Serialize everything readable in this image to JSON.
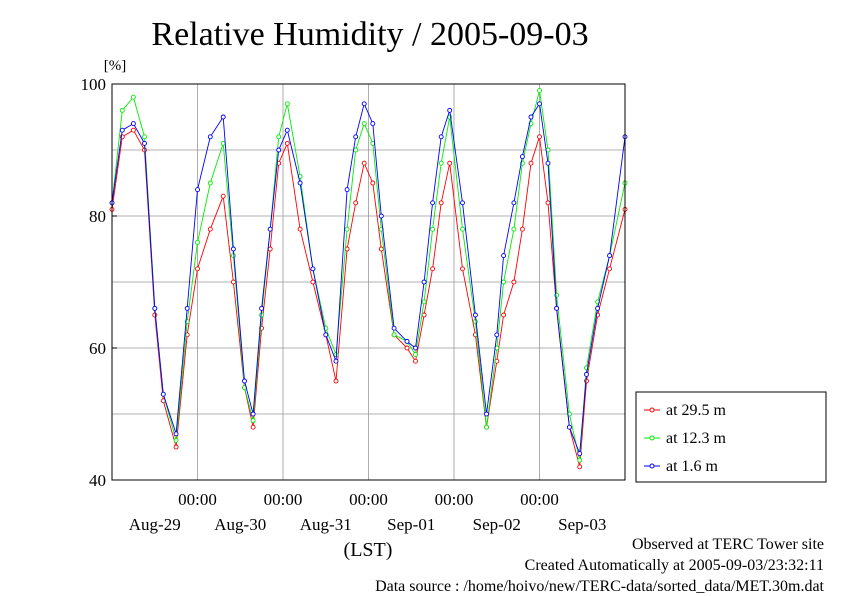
{
  "chart_data": {
    "type": "line",
    "title": "Relative Humidity / 2005-09-03",
    "ylabel": "[%]",
    "xlabel": "(LST)",
    "ylim": [
      40,
      100
    ],
    "yticks": [
      40,
      60,
      80,
      100
    ],
    "x_time_labels": [
      "00:00",
      "00:00",
      "00:00",
      "00:00",
      "00:00"
    ],
    "x_date_labels": [
      "Aug-29",
      "Aug-30",
      "Aug-31",
      "Sep-01",
      "Sep-02",
      "Sep-03"
    ],
    "x_range_days": [
      0,
      6
    ],
    "grid": true,
    "legend_position": "right",
    "series": [
      {
        "name": "at 29.5 m",
        "color": "#ff0000",
        "x": [
          0.0,
          0.12,
          0.25,
          0.38,
          0.5,
          0.6,
          0.75,
          0.88,
          1.0,
          1.15,
          1.3,
          1.42,
          1.55,
          1.65,
          1.75,
          1.85,
          1.95,
          2.05,
          2.2,
          2.35,
          2.5,
          2.62,
          2.75,
          2.85,
          2.95,
          3.05,
          3.15,
          3.3,
          3.45,
          3.55,
          3.65,
          3.75,
          3.85,
          3.95,
          4.1,
          4.25,
          4.38,
          4.5,
          4.58,
          4.7,
          4.8,
          4.9,
          5.0,
          5.1,
          5.2,
          5.35,
          5.47,
          5.55,
          5.68,
          5.82,
          6.0
        ],
        "y": [
          81,
          92,
          93,
          90,
          65,
          52,
          45,
          62,
          72,
          78,
          83,
          70,
          54,
          48,
          63,
          75,
          88,
          91,
          78,
          70,
          62,
          55,
          75,
          82,
          88,
          85,
          75,
          62,
          60,
          58,
          65,
          72,
          82,
          88,
          72,
          62,
          48,
          58,
          65,
          70,
          78,
          88,
          92,
          82,
          66,
          48,
          42,
          55,
          65,
          72,
          81
        ]
      },
      {
        "name": "at 12.3 m",
        "color": "#00ee00",
        "x": [
          0.0,
          0.12,
          0.25,
          0.38,
          0.5,
          0.6,
          0.75,
          0.88,
          1.0,
          1.15,
          1.3,
          1.42,
          1.55,
          1.65,
          1.75,
          1.85,
          1.95,
          2.05,
          2.2,
          2.35,
          2.5,
          2.62,
          2.75,
          2.85,
          2.95,
          3.05,
          3.15,
          3.3,
          3.45,
          3.55,
          3.65,
          3.75,
          3.85,
          3.95,
          4.1,
          4.25,
          4.38,
          4.5,
          4.58,
          4.7,
          4.8,
          4.9,
          5.0,
          5.1,
          5.2,
          5.35,
          5.47,
          5.55,
          5.68,
          5.82,
          6.0
        ],
        "y": [
          82,
          96,
          98,
          92,
          66,
          53,
          46,
          64,
          76,
          85,
          91,
          74,
          54,
          49,
          65,
          78,
          92,
          97,
          86,
          72,
          63,
          59,
          78,
          90,
          94,
          91,
          78,
          62,
          61,
          59,
          67,
          78,
          88,
          95,
          78,
          64,
          48,
          60,
          70,
          78,
          88,
          94,
          99,
          90,
          68,
          50,
          43,
          57,
          67,
          74,
          85
        ]
      },
      {
        "name": "at 1.6 m",
        "color": "#0000ff",
        "x": [
          0.0,
          0.12,
          0.25,
          0.38,
          0.5,
          0.6,
          0.75,
          0.88,
          1.0,
          1.15,
          1.3,
          1.42,
          1.55,
          1.65,
          1.75,
          1.85,
          1.95,
          2.05,
          2.2,
          2.35,
          2.5,
          2.62,
          2.75,
          2.85,
          2.95,
          3.05,
          3.15,
          3.3,
          3.45,
          3.55,
          3.65,
          3.75,
          3.85,
          3.95,
          4.1,
          4.25,
          4.38,
          4.5,
          4.58,
          4.7,
          4.8,
          4.9,
          5.0,
          5.1,
          5.2,
          5.35,
          5.47,
          5.55,
          5.68,
          5.82,
          6.0
        ],
        "y": [
          82,
          93,
          94,
          91,
          66,
          53,
          47,
          66,
          84,
          92,
          95,
          75,
          55,
          50,
          66,
          78,
          90,
          93,
          85,
          72,
          62,
          58,
          84,
          92,
          97,
          94,
          80,
          63,
          61,
          60,
          70,
          82,
          92,
          96,
          82,
          65,
          50,
          62,
          74,
          82,
          89,
          95,
          97,
          88,
          66,
          48,
          44,
          56,
          66,
          74,
          92
        ]
      }
    ],
    "footer": [
      "Observed at TERC Tower site",
      "Created Automatically at 2005-09-03/23:32:11",
      "Data source : /home/hoivo/new/TERC-data/sorted_data/MET.30m.dat"
    ]
  }
}
